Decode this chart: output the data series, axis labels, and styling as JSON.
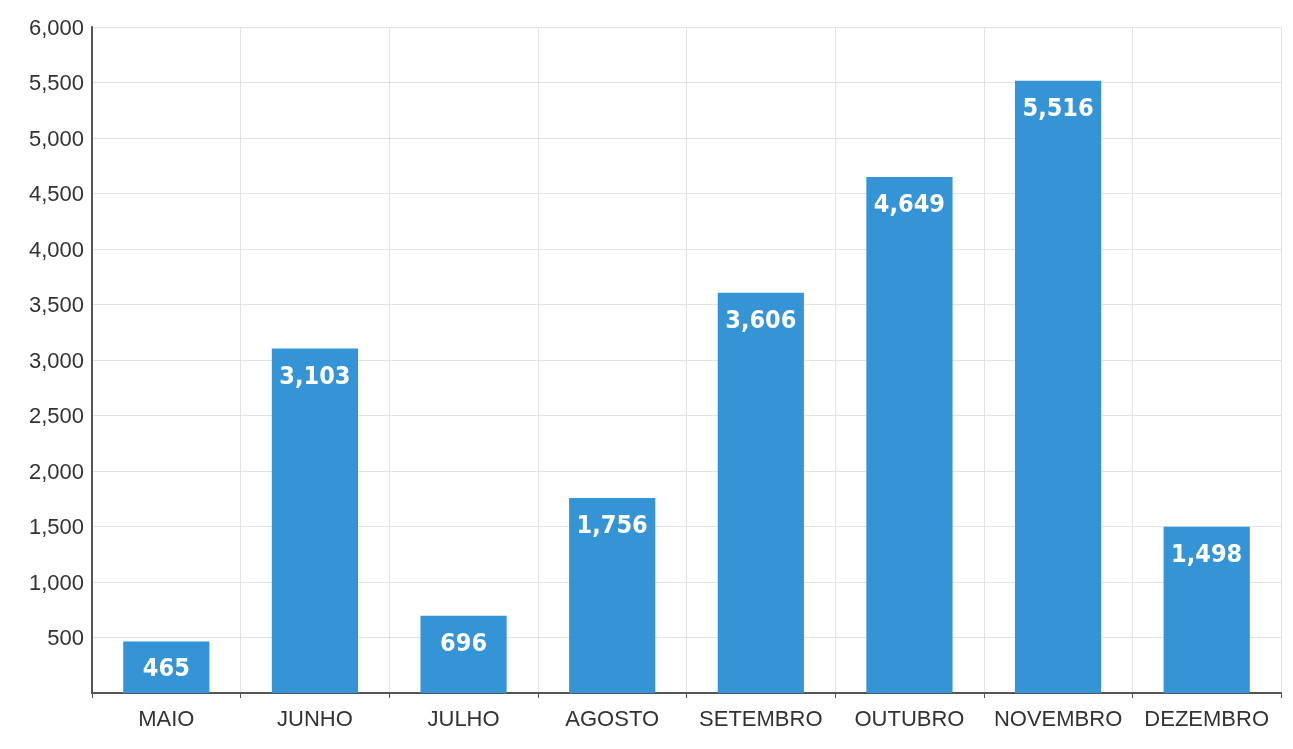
{
  "chart_data": {
    "type": "bar",
    "categories": [
      "MAIO",
      "JUNHO",
      "JULHO",
      "AGOSTO",
      "SETEMBRO",
      "OUTUBRO",
      "NOVEMBRO",
      "DEZEMBRO"
    ],
    "values": [
      465,
      3103,
      696,
      1756,
      3606,
      4649,
      5516,
      1498
    ],
    "value_labels": [
      "465",
      "3,103",
      "696",
      "1,756",
      "3,606",
      "4,649",
      "5,516",
      "1,498"
    ],
    "color": "#3494d6",
    "ylim": [
      0,
      6000
    ],
    "yticks": [
      {
        "value": 0,
        "label": null
      },
      500,
      {
        "value": 1000,
        "label": "1,000"
      },
      {
        "value": 1500,
        "label": "1,500"
      },
      {
        "value": 2000,
        "label": "2,000"
      },
      {
        "value": 2500,
        "label": "2,500"
      },
      {
        "value": 3000,
        "label": "3,000"
      },
      {
        "value": 3500,
        "label": "3,500"
      },
      {
        "value": 4000,
        "label": "4,000"
      },
      {
        "value": 4500,
        "label": "4,500"
      },
      {
        "value": 5000,
        "label": "5,000"
      },
      {
        "value": 5500,
        "label": "5,500"
      },
      {
        "value": 6000,
        "label": "6,000"
      }
    ],
    "grid": true
  }
}
